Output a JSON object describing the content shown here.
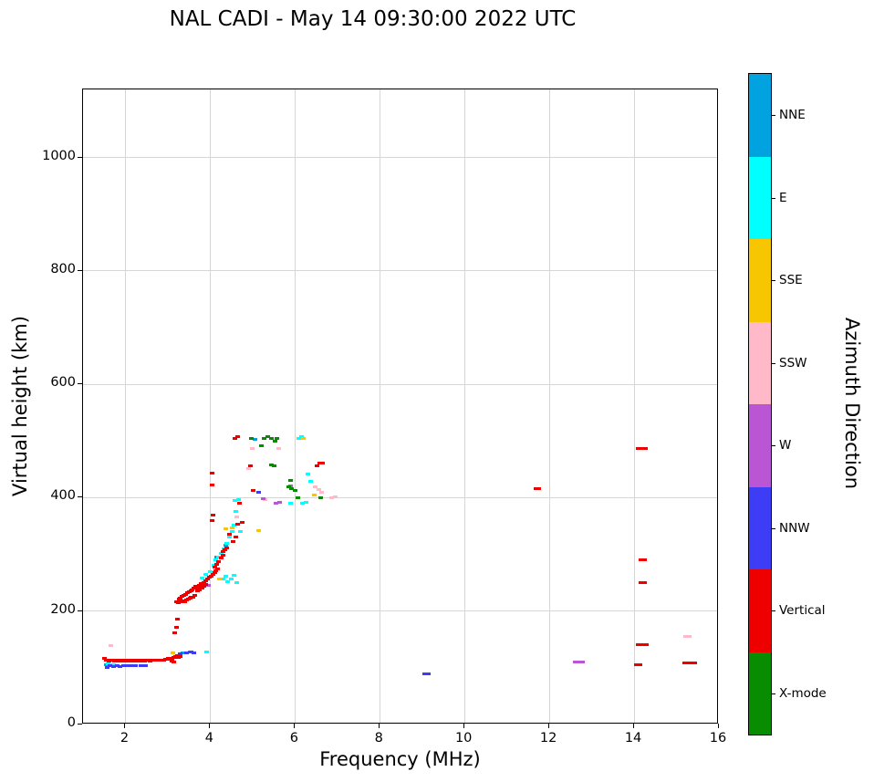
{
  "chart_data": {
    "type": "scatter",
    "title": "NAL CADI - May 14 09:30:00 2022 UTC",
    "xlabel": "Frequency (MHz)",
    "ylabel": "Virtual height (km)",
    "xlim": [
      1,
      16
    ],
    "ylim": [
      0,
      1120
    ],
    "xticks": [
      2,
      4,
      6,
      8,
      10,
      12,
      14,
      16
    ],
    "yticks": [
      0,
      200,
      400,
      600,
      800,
      1000
    ],
    "grid": true,
    "marker_size_px": [
      5,
      3
    ],
    "colorbar": {
      "label": "Azimuth Direction",
      "categories": [
        {
          "label": "NNE",
          "color": "#00a3e0"
        },
        {
          "label": "E",
          "color": "#00ffff"
        },
        {
          "label": "SSE",
          "color": "#f7c600"
        },
        {
          "label": "SSW",
          "color": "#ffb9c8"
        },
        {
          "label": "W",
          "color": "#ba55d3"
        },
        {
          "label": "NNW",
          "color": "#3d3df5"
        },
        {
          "label": "Vertical",
          "color": "#ee0000"
        },
        {
          "label": "X-mode",
          "color": "#088c00"
        }
      ]
    },
    "series": [
      {
        "name": "NNE",
        "color": "#00a3e0",
        "points": [
          [
            1.55,
            105
          ],
          [
            1.66,
            104
          ],
          [
            3.36,
            126
          ],
          [
            3.52,
            128
          ],
          [
            4.16,
            296
          ],
          [
            4.36,
            316
          ],
          [
            5.05,
            503
          ]
        ]
      },
      {
        "name": "E",
        "color": "#00ffff",
        "points": [
          [
            1.6,
            107
          ],
          [
            1.72,
            106
          ],
          [
            3.92,
            128
          ],
          [
            3.8,
            259
          ],
          [
            3.9,
            264
          ],
          [
            4.0,
            270
          ],
          [
            4.08,
            281
          ],
          [
            4.14,
            291
          ],
          [
            4.2,
            296
          ],
          [
            4.26,
            301
          ],
          [
            4.32,
            310
          ],
          [
            4.4,
            320
          ],
          [
            4.46,
            331
          ],
          [
            4.52,
            341
          ],
          [
            4.56,
            351
          ],
          [
            4.3,
            256
          ],
          [
            4.36,
            261
          ],
          [
            4.42,
            252
          ],
          [
            4.5,
            257
          ],
          [
            4.56,
            263
          ],
          [
            4.62,
            250
          ],
          [
            4.6,
            376
          ],
          [
            4.66,
            396
          ],
          [
            4.72,
            341
          ],
          [
            6.1,
            505
          ],
          [
            6.16,
            507
          ],
          [
            6.3,
            441
          ],
          [
            6.36,
            429
          ],
          [
            5.9,
            391
          ],
          [
            6.18,
            390
          ],
          [
            6.26,
            392
          ],
          [
            4.58,
            395
          ]
        ]
      },
      {
        "name": "SSE",
        "color": "#f7c600",
        "points": [
          [
            3.12,
            126
          ],
          [
            3.76,
            242
          ],
          [
            4.22,
            256
          ],
          [
            4.36,
            345
          ],
          [
            4.52,
            346
          ],
          [
            5.14,
            342
          ],
          [
            6.2,
            505
          ],
          [
            6.46,
            404
          ]
        ]
      },
      {
        "name": "SSW",
        "color": "#ffb9c8",
        "points": [
          [
            1.66,
            140
          ],
          [
            4.62,
            366
          ],
          [
            4.9,
            451
          ],
          [
            5.0,
            486
          ],
          [
            5.3,
            396
          ],
          [
            5.62,
            486
          ],
          [
            6.48,
            420
          ],
          [
            6.56,
            414
          ],
          [
            6.62,
            410
          ],
          [
            6.86,
            400
          ],
          [
            6.94,
            402
          ],
          [
            15.22,
            156
          ],
          [
            15.3,
            156
          ]
        ]
      },
      {
        "name": "W",
        "color": "#ba55d3",
        "points": [
          [
            3.96,
            246
          ],
          [
            5.26,
            399
          ],
          [
            5.56,
            390
          ],
          [
            5.64,
            392
          ],
          [
            5.9,
            421
          ],
          [
            12.62,
            111
          ],
          [
            12.7,
            111
          ],
          [
            12.78,
            111
          ]
        ]
      },
      {
        "name": "NNW",
        "color": "#3d3df5",
        "points": [
          [
            1.56,
            101
          ],
          [
            1.64,
            103
          ],
          [
            1.72,
            102
          ],
          [
            1.8,
            103
          ],
          [
            1.88,
            102
          ],
          [
            1.96,
            103
          ],
          [
            2.04,
            104
          ],
          [
            2.12,
            103
          ],
          [
            2.24,
            103
          ],
          [
            2.36,
            104
          ],
          [
            2.48,
            104
          ],
          [
            3.3,
            124
          ],
          [
            3.44,
            127
          ],
          [
            3.54,
            128
          ],
          [
            3.62,
            127
          ],
          [
            5.15,
            410
          ],
          [
            9.06,
            90
          ],
          [
            9.14,
            90
          ]
        ]
      },
      {
        "name": "X-mode",
        "color": "#088c00",
        "points": [
          [
            4.96,
            505
          ],
          [
            5.28,
            505
          ],
          [
            5.36,
            507
          ],
          [
            5.44,
            505
          ],
          [
            5.52,
            500
          ],
          [
            5.58,
            504
          ],
          [
            5.2,
            491
          ],
          [
            5.44,
            458
          ],
          [
            5.5,
            456
          ],
          [
            5.86,
            419
          ],
          [
            5.92,
            416
          ],
          [
            6.0,
            413
          ],
          [
            6.06,
            400
          ],
          [
            6.6,
            400
          ],
          [
            5.9,
            430
          ]
        ]
      },
      {
        "name": "Vertical",
        "color": "#ee0000",
        "points": [
          [
            1.5,
            116
          ],
          [
            1.54,
            113
          ],
          [
            1.58,
            114
          ],
          [
            1.62,
            112
          ],
          [
            1.66,
            114
          ],
          [
            1.7,
            113
          ],
          [
            1.74,
            112
          ],
          [
            1.78,
            113
          ],
          [
            1.82,
            112
          ],
          [
            1.86,
            113
          ],
          [
            1.9,
            112
          ],
          [
            1.94,
            113
          ],
          [
            1.98,
            112
          ],
          [
            2.02,
            113
          ],
          [
            2.06,
            112
          ],
          [
            2.1,
            113
          ],
          [
            2.14,
            113
          ],
          [
            2.18,
            112
          ],
          [
            2.22,
            113
          ],
          [
            2.26,
            112
          ],
          [
            2.3,
            113
          ],
          [
            2.34,
            112
          ],
          [
            2.38,
            113
          ],
          [
            2.42,
            113
          ],
          [
            2.46,
            112
          ],
          [
            2.5,
            113
          ],
          [
            2.54,
            113
          ],
          [
            2.58,
            112
          ],
          [
            2.62,
            113
          ],
          [
            2.66,
            113
          ],
          [
            2.7,
            114
          ],
          [
            2.74,
            113
          ],
          [
            2.78,
            114
          ],
          [
            2.82,
            113
          ],
          [
            2.86,
            114
          ],
          [
            2.9,
            114
          ],
          [
            2.94,
            115
          ],
          [
            2.98,
            115
          ],
          [
            3.02,
            116
          ],
          [
            3.06,
            116
          ],
          [
            3.1,
            117
          ],
          [
            3.14,
            118
          ],
          [
            3.18,
            120
          ],
          [
            3.22,
            122
          ],
          [
            3.1,
            112
          ],
          [
            3.15,
            110
          ],
          [
            3.25,
            118
          ],
          [
            3.3,
            120
          ],
          [
            3.16,
            162
          ],
          [
            3.2,
            172
          ],
          [
            3.22,
            186
          ],
          [
            3.2,
            216
          ],
          [
            3.24,
            215
          ],
          [
            3.28,
            217
          ],
          [
            3.32,
            216
          ],
          [
            3.36,
            218
          ],
          [
            3.4,
            217
          ],
          [
            3.44,
            219
          ],
          [
            3.48,
            221
          ],
          [
            3.52,
            223
          ],
          [
            3.56,
            225
          ],
          [
            3.6,
            224
          ],
          [
            3.64,
            227
          ],
          [
            3.26,
            221
          ],
          [
            3.3,
            223
          ],
          [
            3.34,
            226
          ],
          [
            3.38,
            228
          ],
          [
            3.42,
            230
          ],
          [
            3.46,
            232
          ],
          [
            3.5,
            234
          ],
          [
            3.54,
            236
          ],
          [
            3.58,
            238
          ],
          [
            3.62,
            240
          ],
          [
            3.66,
            243
          ],
          [
            3.7,
            241
          ],
          [
            3.74,
            246
          ],
          [
            3.78,
            249
          ],
          [
            3.82,
            247
          ],
          [
            3.86,
            251
          ],
          [
            3.9,
            254
          ],
          [
            3.94,
            257
          ],
          [
            3.98,
            260
          ],
          [
            3.7,
            235
          ],
          [
            3.75,
            238
          ],
          [
            3.8,
            241
          ],
          [
            3.85,
            244
          ],
          [
            3.9,
            247
          ],
          [
            4.02,
            262
          ],
          [
            4.06,
            265
          ],
          [
            4.1,
            268
          ],
          [
            4.14,
            271
          ],
          [
            4.18,
            274
          ],
          [
            4.1,
            278
          ],
          [
            4.15,
            283
          ],
          [
            4.2,
            288
          ],
          [
            4.25,
            293
          ],
          [
            4.3,
            298
          ],
          [
            4.3,
            305
          ],
          [
            4.35,
            308
          ],
          [
            4.4,
            312
          ],
          [
            4.45,
            335
          ],
          [
            4.55,
            322
          ],
          [
            4.6,
            331
          ],
          [
            4.65,
            354
          ],
          [
            4.7,
            390
          ],
          [
            4.75,
            356
          ],
          [
            4.04,
            359
          ],
          [
            4.06,
            370
          ],
          [
            4.05,
            423
          ],
          [
            4.05,
            444
          ],
          [
            4.58,
            505
          ],
          [
            4.64,
            507
          ],
          [
            4.95,
            456
          ],
          [
            5.02,
            412
          ],
          [
            6.52,
            456
          ],
          [
            6.58,
            461
          ],
          [
            6.64,
            461
          ],
          [
            11.68,
            416
          ],
          [
            11.76,
            416
          ],
          [
            14.1,
            486
          ],
          [
            14.18,
            486
          ],
          [
            14.26,
            486
          ],
          [
            14.16,
            291
          ],
          [
            14.24,
            291
          ],
          [
            14.16,
            251
          ],
          [
            14.24,
            251
          ],
          [
            14.1,
            141
          ],
          [
            14.18,
            141
          ],
          [
            14.28,
            141
          ],
          [
            14.06,
            106
          ],
          [
            14.14,
            106
          ],
          [
            15.2,
            108
          ],
          [
            15.28,
            108
          ],
          [
            15.36,
            108
          ],
          [
            15.44,
            108
          ]
        ]
      }
    ]
  }
}
